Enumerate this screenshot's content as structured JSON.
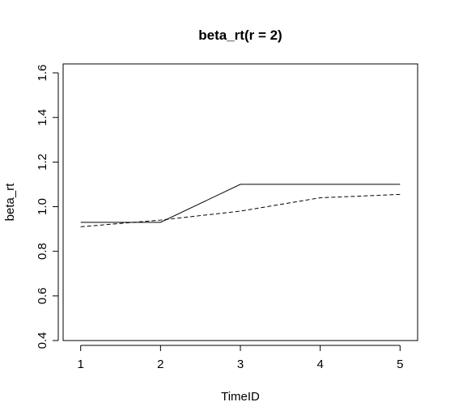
{
  "chart_data": {
    "type": "line",
    "title": "beta_rt(r = 2)",
    "xlabel": "TimeID",
    "ylabel": "beta_rt",
    "x": [
      1,
      2,
      3,
      4,
      5
    ],
    "xticks": [
      "1",
      "2",
      "3",
      "4",
      "5"
    ],
    "xlim": [
      0.78,
      5.22
    ],
    "ylim": [
      0.4,
      1.64
    ],
    "yticks": [
      "0.4",
      "0.6",
      "0.8",
      "1.0",
      "1.2",
      "1.4",
      "1.6"
    ],
    "grid": false,
    "legend": "none",
    "series": [
      {
        "style": "solid",
        "color": "#000000",
        "values": [
          0.93,
          0.93,
          1.1,
          1.1,
          1.1
        ]
      },
      {
        "style": "dashed",
        "color": "#000000",
        "values": [
          0.91,
          0.94,
          0.98,
          1.04,
          1.055
        ]
      }
    ]
  }
}
